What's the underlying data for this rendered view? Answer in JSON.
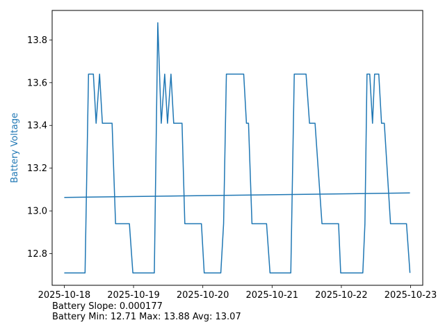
{
  "chart_data": {
    "type": "line",
    "xlabel": "",
    "ylabel": "Battery Voltage",
    "xlim": [
      "2025-10-17T19:48",
      "2025-10-23T04:12"
    ],
    "ylim": [
      12.652,
      13.938
    ],
    "x_ticks": [
      "2025-10-18",
      "2025-10-19",
      "2025-10-20",
      "2025-10-21",
      "2025-10-22",
      "2025-10-23"
    ],
    "y_ticks": [
      12.8,
      13.0,
      13.2,
      13.4,
      13.6,
      13.8
    ],
    "grid": false,
    "colors": {
      "series": "#1f77b4",
      "ylabel": "#1f77b4"
    },
    "series": [
      {
        "type": "line",
        "points": [
          [
            "2025-10-18T00:00",
            12.71
          ],
          [
            "2025-10-18T07:12",
            12.71
          ],
          [
            "2025-10-18T08:24",
            13.64
          ],
          [
            "2025-10-18T10:05",
            13.64
          ],
          [
            "2025-10-18T11:02",
            13.41
          ],
          [
            "2025-10-18T12:14",
            13.64
          ],
          [
            "2025-10-18T13:12",
            13.41
          ],
          [
            "2025-10-18T16:34",
            13.41
          ],
          [
            "2025-10-18T17:46",
            12.94
          ],
          [
            "2025-10-18T22:34",
            12.94
          ],
          [
            "2025-10-18T23:46",
            12.71
          ],
          [
            "2025-10-19T07:12",
            12.71
          ],
          [
            "2025-10-19T08:24",
            13.88
          ],
          [
            "2025-10-19T09:36",
            13.41
          ],
          [
            "2025-10-19T10:48",
            13.64
          ],
          [
            "2025-10-19T11:46",
            13.41
          ],
          [
            "2025-10-19T12:58",
            13.64
          ],
          [
            "2025-10-19T13:55",
            13.41
          ],
          [
            "2025-10-19T16:48",
            13.41
          ],
          [
            "2025-10-19T17:46",
            12.94
          ],
          [
            "2025-10-19T23:31",
            12.94
          ],
          [
            "2025-10-20T00:29",
            12.71
          ],
          [
            "2025-10-20T06:14",
            12.71
          ],
          [
            "2025-10-20T07:12",
            12.94
          ],
          [
            "2025-10-20T08:10",
            13.64
          ],
          [
            "2025-10-20T14:10",
            13.64
          ],
          [
            "2025-10-20T15:07",
            13.41
          ],
          [
            "2025-10-20T15:50",
            13.41
          ],
          [
            "2025-10-20T17:02",
            12.94
          ],
          [
            "2025-10-20T22:05",
            12.94
          ],
          [
            "2025-10-20T23:17",
            12.71
          ],
          [
            "2025-10-21T06:29",
            12.71
          ],
          [
            "2025-10-21T07:41",
            13.64
          ],
          [
            "2025-10-21T11:46",
            13.64
          ],
          [
            "2025-10-21T12:58",
            13.41
          ],
          [
            "2025-10-21T14:53",
            13.41
          ],
          [
            "2025-10-21T17:17",
            12.94
          ],
          [
            "2025-10-21T23:02",
            12.94
          ],
          [
            "2025-10-21T23:46",
            12.71
          ],
          [
            "2025-10-22T07:26",
            12.71
          ],
          [
            "2025-10-22T08:10",
            12.94
          ],
          [
            "2025-10-22T08:53",
            13.64
          ],
          [
            "2025-10-22T09:50",
            13.64
          ],
          [
            "2025-10-22T10:48",
            13.41
          ],
          [
            "2025-10-22T11:31",
            13.64
          ],
          [
            "2025-10-22T12:58",
            13.64
          ],
          [
            "2025-10-22T13:55",
            13.41
          ],
          [
            "2025-10-22T14:53",
            13.41
          ],
          [
            "2025-10-22T17:02",
            12.94
          ],
          [
            "2025-10-22T22:34",
            12.94
          ],
          [
            "2025-10-22T23:46",
            12.71
          ]
        ]
      },
      {
        "type": "trend",
        "points": [
          [
            "2025-10-18T00:00",
            13.063
          ],
          [
            "2025-10-22T23:46",
            13.084
          ]
        ]
      }
    ]
  },
  "stats": {
    "slope_text": "Battery Slope: 0.000177",
    "range_text": "Battery Min: 12.71 Max: 13.88 Avg: 13.07"
  }
}
